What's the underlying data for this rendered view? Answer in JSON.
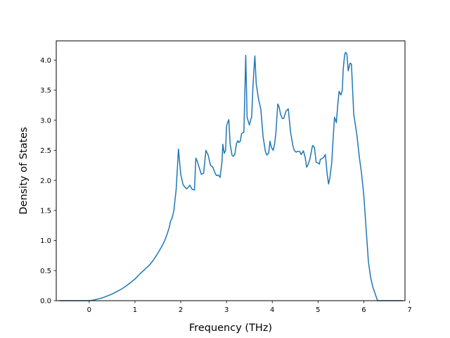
{
  "chart_data": {
    "type": "line",
    "title": "",
    "xlabel": "Frequency (THz)",
    "ylabel": "Density of States",
    "xlim": [
      -0.72,
      6.9
    ],
    "ylim": [
      0,
      4.32
    ],
    "xticks": [
      0,
      1,
      2,
      3,
      4,
      5,
      6,
      7
    ],
    "xtick_labels": [
      "0",
      "1",
      "2",
      "3",
      "4",
      "5",
      "6",
      "7"
    ],
    "yticks": [
      0.0,
      0.5,
      1.0,
      1.5,
      2.0,
      2.5,
      3.0,
      3.5,
      4.0
    ],
    "ytick_labels": [
      "0.0",
      "0.5",
      "1.0",
      "1.5",
      "2.0",
      "2.5",
      "3.0",
      "3.5",
      "4.0"
    ],
    "grid": false,
    "series": [
      {
        "color": "#1f77b4",
        "x": [
          -0.65,
          -0.3,
          0.0,
          0.1,
          0.2,
          0.3,
          0.4,
          0.5,
          0.6,
          0.7,
          0.8,
          0.9,
          1.0,
          1.1,
          1.2,
          1.3,
          1.4,
          1.5,
          1.6,
          1.65,
          1.7,
          1.75,
          1.78,
          1.8,
          1.82,
          1.85,
          1.9,
          1.95,
          2.0,
          2.05,
          2.1,
          2.13,
          2.16,
          2.2,
          2.25,
          2.3,
          2.33,
          2.36,
          2.4,
          2.45,
          2.5,
          2.55,
          2.6,
          2.65,
          2.7,
          2.75,
          2.78,
          2.82,
          2.86,
          2.9,
          2.92,
          2.95,
          2.98,
          3.0,
          3.02,
          3.05,
          3.08,
          3.12,
          3.15,
          3.18,
          3.22,
          3.25,
          3.27,
          3.3,
          3.33,
          3.38,
          3.42,
          3.45,
          3.5,
          3.55,
          3.58,
          3.62,
          3.65,
          3.7,
          3.75,
          3.8,
          3.85,
          3.88,
          3.92,
          3.95,
          3.98,
          4.02,
          4.05,
          4.08,
          4.12,
          4.15,
          4.18,
          4.22,
          4.25,
          4.3,
          4.35,
          4.4,
          4.45,
          4.48,
          4.52,
          4.55,
          4.6,
          4.63,
          4.68,
          4.72,
          4.75,
          4.78,
          4.82,
          4.88,
          4.92,
          4.96,
          5.0,
          5.03,
          5.05,
          5.08,
          5.12,
          5.16,
          5.2,
          5.23,
          5.26,
          5.3,
          5.33,
          5.36,
          5.4,
          5.43,
          5.46,
          5.5,
          5.53,
          5.55,
          5.58,
          5.6,
          5.63,
          5.66,
          5.7,
          5.73,
          5.78,
          5.85,
          5.9,
          5.95,
          6.0,
          6.05,
          6.1,
          6.15,
          6.2,
          6.3,
          6.5,
          6.85
        ],
        "y": [
          0.0,
          0.0,
          0.0,
          0.01,
          0.03,
          0.05,
          0.08,
          0.11,
          0.15,
          0.19,
          0.24,
          0.3,
          0.36,
          0.44,
          0.51,
          0.58,
          0.67,
          0.79,
          0.92,
          1.0,
          1.1,
          1.22,
          1.33,
          1.35,
          1.4,
          1.5,
          1.85,
          2.52,
          2.1,
          1.93,
          1.88,
          1.86,
          1.88,
          1.92,
          1.85,
          1.84,
          2.37,
          2.32,
          2.22,
          2.1,
          2.12,
          2.5,
          2.42,
          2.25,
          2.22,
          2.12,
          2.08,
          2.09,
          2.05,
          2.3,
          2.6,
          2.45,
          2.5,
          2.9,
          2.95,
          3.01,
          2.6,
          2.42,
          2.4,
          2.43,
          2.62,
          2.66,
          2.63,
          2.65,
          2.78,
          2.8,
          4.08,
          3.05,
          2.92,
          3.06,
          3.6,
          4.07,
          3.6,
          3.35,
          3.18,
          2.72,
          2.48,
          2.42,
          2.45,
          2.65,
          2.55,
          2.5,
          2.6,
          2.8,
          3.27,
          3.22,
          3.1,
          3.03,
          3.03,
          3.15,
          3.19,
          2.8,
          2.58,
          2.5,
          2.47,
          2.48,
          2.48,
          2.43,
          2.49,
          2.38,
          2.22,
          2.26,
          2.35,
          2.58,
          2.55,
          2.3,
          2.29,
          2.27,
          2.35,
          2.36,
          2.38,
          2.43,
          2.1,
          1.94,
          2.05,
          2.3,
          2.7,
          3.05,
          2.96,
          3.25,
          3.48,
          3.42,
          3.5,
          3.85,
          4.08,
          4.13,
          4.1,
          3.82,
          3.95,
          3.93,
          3.1,
          2.75,
          2.4,
          2.12,
          1.75,
          1.2,
          0.65,
          0.38,
          0.22,
          0.0,
          0.0,
          0.0
        ]
      }
    ]
  }
}
